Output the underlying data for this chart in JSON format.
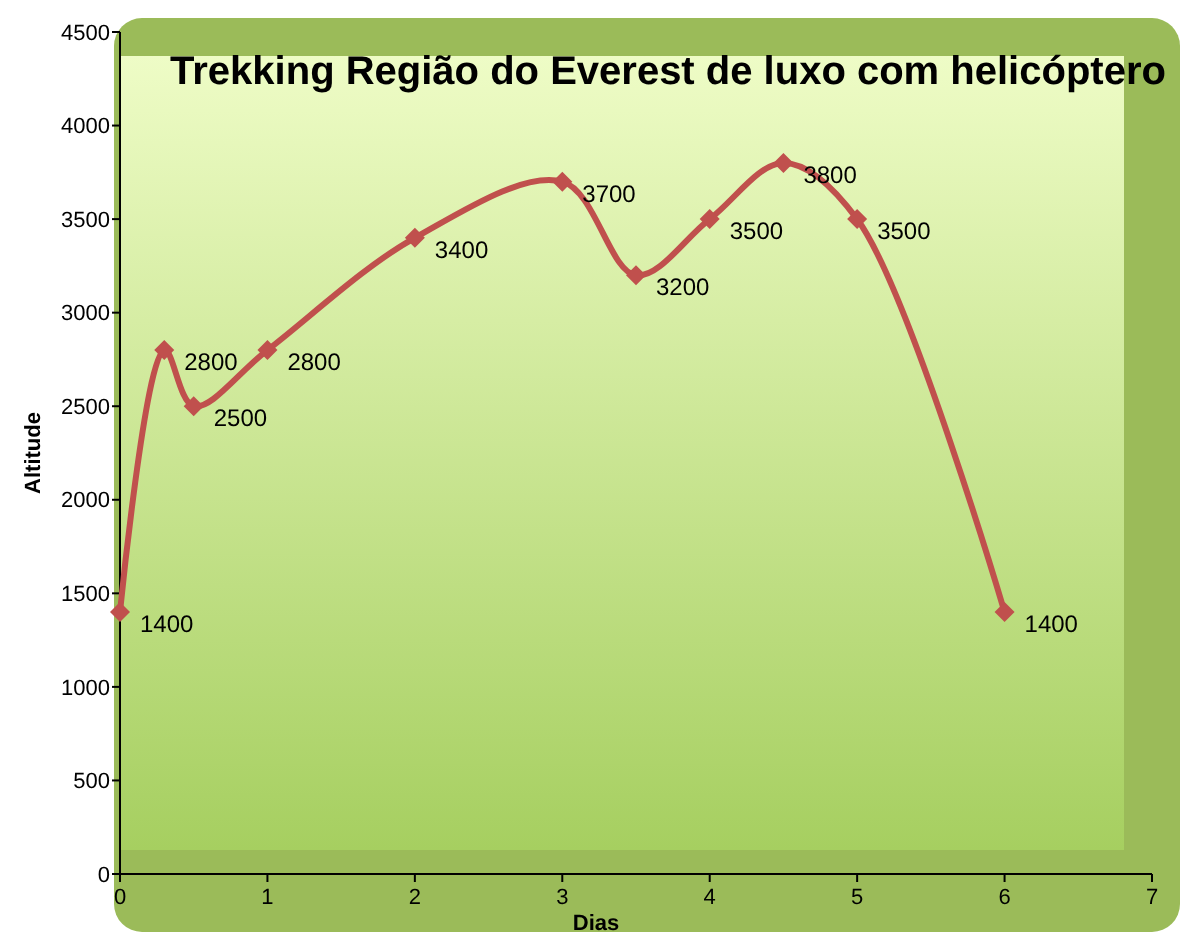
{
  "chart_data": {
    "type": "line",
    "title": "Trekking Região do Everest de luxo com helicóptero",
    "xlabel": "Dias",
    "ylabel": "Altitude",
    "x": [
      0,
      0.3,
      0.5,
      1,
      2,
      3,
      3.5,
      4,
      4.5,
      5,
      6
    ],
    "series": [
      {
        "color": "#c0504d",
        "values": [
          1400,
          2800,
          2500,
          2800,
          3400,
          3700,
          3200,
          3500,
          3800,
          3500,
          1400
        ]
      }
    ],
    "xlim": [
      0,
      7
    ],
    "xticks": [
      0,
      1,
      2,
      3,
      4,
      5,
      6,
      7
    ],
    "ylim": [
      0,
      4500
    ],
    "yticks": [
      0,
      500,
      1000,
      1500,
      2000,
      2500,
      3000,
      3500,
      4000,
      4500
    ],
    "data_labels": true,
    "marker": "diamond",
    "line_style": "solid",
    "grid": false
  }
}
